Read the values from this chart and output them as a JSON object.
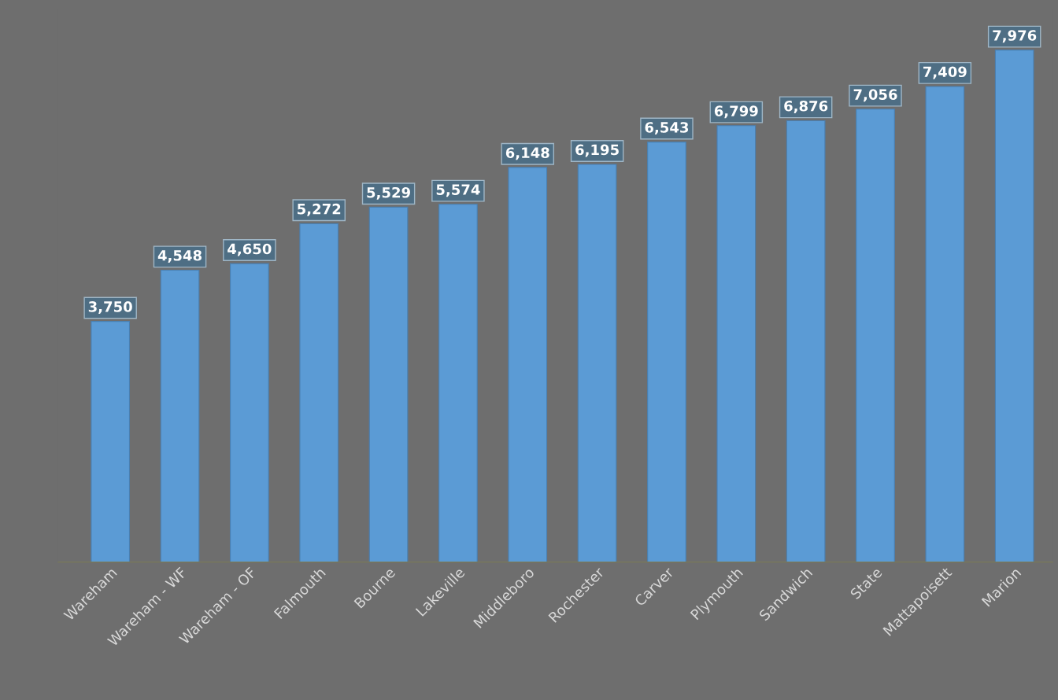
{
  "chart_data": {
    "type": "bar",
    "categories": [
      "Wareham",
      "Wareham - WF",
      "Wareham - OF",
      "Falmouth",
      "Bourne",
      "Lakeville",
      "Middleboro",
      "Rochester",
      "Carver",
      "Plymouth",
      "Sandwich",
      "State",
      "Mattapoisett",
      "Marion"
    ],
    "values": [
      3750,
      4548,
      4650,
      5272,
      5529,
      5574,
      6148,
      6195,
      6543,
      6799,
      6876,
      7056,
      7409,
      7976
    ],
    "value_labels": [
      "3,750",
      "4,548",
      "4,650",
      "5,272",
      "5,529",
      "5,574",
      "6,148",
      "6,195",
      "6,543",
      "6,799",
      "6,876",
      "7,056",
      "7,409",
      "7,976"
    ],
    "color": "#5b9bd5",
    "tick_labels": "x",
    "grid": false,
    "legend": false
  }
}
